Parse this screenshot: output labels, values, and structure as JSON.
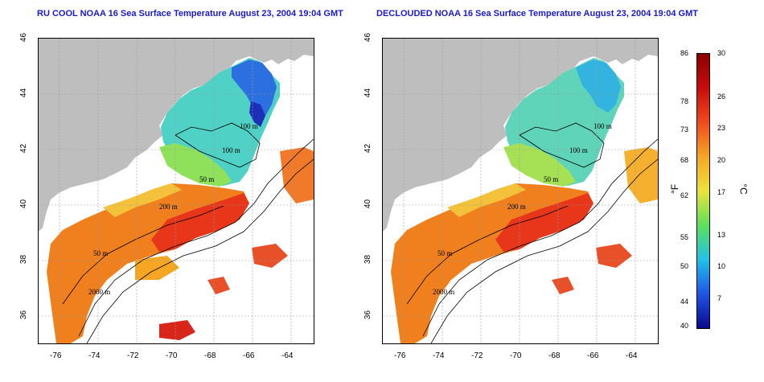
{
  "titles": {
    "left": "RU COOL NOAA 16 Sea Surface Temperature August 23, 2004 19:04 GMT",
    "right": "DECLOUDED NOAA 16 Sea Surface Temperature August 23, 2004 19:04 GMT"
  },
  "x_ticks": [
    "-76",
    "-74",
    "-72",
    "-70",
    "-68",
    "-66",
    "-64"
  ],
  "y_ticks": [
    "46",
    "44",
    "42",
    "40",
    "38",
    "36"
  ],
  "contour_labels": {
    "left": [
      "100 m",
      "100 m",
      "50 m",
      "200 m",
      "50 m",
      "2000 m"
    ],
    "right": [
      "100 m",
      "100 m",
      "50 m",
      "200 m",
      "50 m",
      "2000 m"
    ]
  },
  "colorbar": {
    "fahrenheit": [
      "86",
      "78",
      "73",
      "68",
      "62",
      "55",
      "50",
      "44",
      "40"
    ],
    "celsius": [
      "30",
      "26",
      "23",
      "20",
      "17",
      "13",
      "10",
      "7"
    ],
    "unit_f": "°F",
    "unit_c": "°C",
    "colors": [
      "#0a0a8c",
      "#1e55e6",
      "#21c2e8",
      "#5ce05a",
      "#ede23a",
      "#f5a623",
      "#ef4b1e",
      "#c80d0d",
      "#8a0000"
    ]
  },
  "colors": {
    "land": "#bebebe",
    "title": "#1a1acc",
    "grid": "#9a9a9a"
  }
}
